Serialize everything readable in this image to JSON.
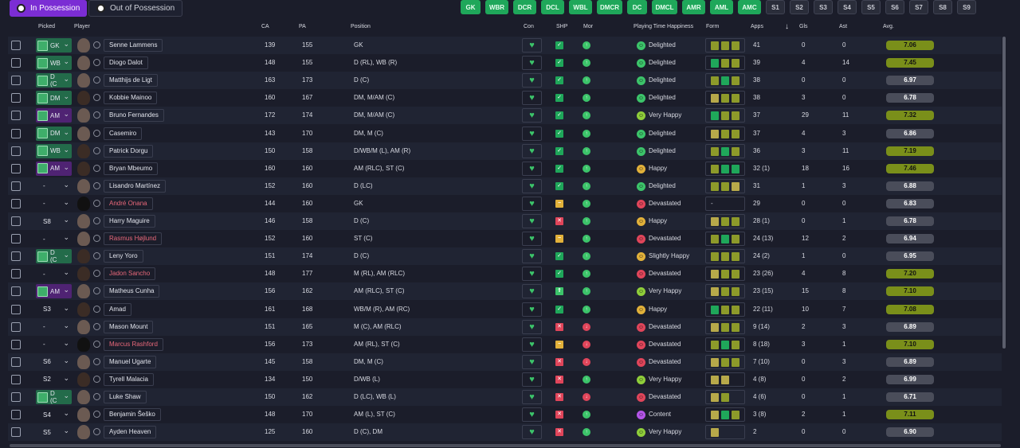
{
  "tabs": [
    {
      "label": "In Possession",
      "active": true,
      "icon": "soccer-ball-icon"
    },
    {
      "label": "Out of Possession",
      "active": false,
      "icon": "soccer-ball-icon"
    }
  ],
  "position_chips": [
    {
      "label": "GK",
      "color": "green"
    },
    {
      "label": "WBR",
      "color": "green"
    },
    {
      "label": "DCR",
      "color": "green"
    },
    {
      "label": "DCL",
      "color": "green"
    },
    {
      "label": "WBL",
      "color": "green"
    },
    {
      "label": "DMCR",
      "color": "green"
    },
    {
      "label": "DC",
      "color": "green"
    },
    {
      "label": "DMCL",
      "color": "green"
    },
    {
      "label": "AMR",
      "color": "green"
    },
    {
      "label": "AML",
      "color": "green"
    },
    {
      "label": "AMC",
      "color": "green"
    },
    {
      "label": "S1",
      "color": "grey"
    },
    {
      "label": "S2",
      "color": "grey"
    },
    {
      "label": "S3",
      "color": "grey"
    },
    {
      "label": "S4",
      "color": "grey"
    },
    {
      "label": "S5",
      "color": "grey"
    },
    {
      "label": "S6",
      "color": "grey"
    },
    {
      "label": "S7",
      "color": "grey"
    },
    {
      "label": "S8",
      "color": "grey"
    },
    {
      "label": "S9",
      "color": "grey"
    }
  ],
  "columns": {
    "picked": "Picked",
    "player": "Player",
    "ca": "CA",
    "pa": "PA",
    "position": "Position",
    "con": "Con",
    "shp": "SHP",
    "mor": "Mor",
    "happiness": "Playing Time Happiness",
    "form": "Form",
    "apps": "Apps",
    "gls": "Gls",
    "ast": "Ast",
    "avg": "Avg."
  },
  "players": [
    {
      "pick": "GK",
      "chip": "green",
      "name": "Senne Lammens",
      "red": false,
      "face": "light",
      "ca": "139",
      "pa": "155",
      "pos": "GK",
      "shp": "ok",
      "mor": "good",
      "hap": "Delighted",
      "hapc": "#3cc46a",
      "form": [
        "#8d9a2a",
        "#8d9a2a",
        "#8d9a2a"
      ],
      "apps": "41",
      "gls": "0",
      "ast": "0",
      "avg": "7.06",
      "good": true
    },
    {
      "pick": "WB",
      "chip": "green",
      "name": "Diogo Dalot",
      "red": false,
      "face": "light",
      "ca": "148",
      "pa": "155",
      "pos": "D (RL), WB (R)",
      "shp": "ok",
      "mor": "good",
      "hap": "Delighted",
      "hapc": "#3cc46a",
      "form": [
        "#1fa75a",
        "#8d9a2a",
        "#8d9a2a"
      ],
      "apps": "39",
      "gls": "4",
      "ast": "14",
      "avg": "7.45",
      "good": true
    },
    {
      "pick": "D (C",
      "chip": "green",
      "name": "Matthijs de Ligt",
      "red": false,
      "face": "light",
      "ca": "163",
      "pa": "173",
      "pos": "D (C)",
      "shp": "ok",
      "mor": "good",
      "hap": "Delighted",
      "hapc": "#3cc46a",
      "form": [
        "#8d9a2a",
        "#1fa75a",
        "#8d9a2a"
      ],
      "apps": "38",
      "gls": "0",
      "ast": "0",
      "avg": "6.97",
      "good": false
    },
    {
      "pick": "DM",
      "chip": "green",
      "name": "Kobbie Mainoo",
      "red": false,
      "face": "dark",
      "ca": "160",
      "pa": "167",
      "pos": "DM, M/AM (C)",
      "shp": "ok",
      "mor": "good",
      "hap": "Delighted",
      "hapc": "#3cc46a",
      "form": [
        "#b7a94a",
        "#8d9a2a",
        "#8d9a2a"
      ],
      "apps": "38",
      "gls": "3",
      "ast": "0",
      "avg": "6.78",
      "good": false
    },
    {
      "pick": "AM",
      "chip": "purple",
      "name": "Bruno Fernandes",
      "red": false,
      "face": "light",
      "ca": "172",
      "pa": "174",
      "pos": "DM, M/AM (C)",
      "shp": "ok",
      "mor": "good",
      "hap": "Very Happy",
      "hapc": "#8fce3a",
      "form": [
        "#1fa75a",
        "#8d9a2a",
        "#8d9a2a"
      ],
      "apps": "37",
      "gls": "29",
      "ast": "11",
      "avg": "7.32",
      "good": true
    },
    {
      "pick": "DM",
      "chip": "green",
      "name": "Casemiro",
      "red": false,
      "face": "light",
      "ca": "143",
      "pa": "170",
      "pos": "DM, M (C)",
      "shp": "ok",
      "mor": "good",
      "hap": "Delighted",
      "hapc": "#3cc46a",
      "form": [
        "#b7a94a",
        "#8d9a2a",
        "#8d9a2a"
      ],
      "apps": "37",
      "gls": "4",
      "ast": "3",
      "avg": "6.86",
      "good": false
    },
    {
      "pick": "WB",
      "chip": "green",
      "name": "Patrick Dorgu",
      "red": false,
      "face": "dark",
      "ca": "150",
      "pa": "158",
      "pos": "D/WB/M (L), AM (R)",
      "shp": "ok",
      "mor": "good",
      "hap": "Delighted",
      "hapc": "#3cc46a",
      "form": [
        "#8d9a2a",
        "#1fa75a",
        "#8d9a2a"
      ],
      "apps": "36",
      "gls": "3",
      "ast": "11",
      "avg": "7.19",
      "good": true
    },
    {
      "pick": "AM",
      "chip": "purple",
      "name": "Bryan Mbeumo",
      "red": false,
      "face": "dark",
      "ca": "160",
      "pa": "160",
      "pos": "AM (RLC), ST (C)",
      "shp": "ok",
      "mor": "good",
      "hap": "Happy",
      "hapc": "#e2b13a",
      "form": [
        "#8d9a2a",
        "#1fa75a",
        "#1fa75a"
      ],
      "apps": "32 (1)",
      "gls": "18",
      "ast": "16",
      "avg": "7.46",
      "good": true
    },
    {
      "pick": "-",
      "chip": "none",
      "name": "Lisandro Martínez",
      "red": false,
      "face": "light",
      "ca": "152",
      "pa": "160",
      "pos": "D (LC)",
      "shp": "ok",
      "mor": "good",
      "hap": "Delighted",
      "hapc": "#3cc46a",
      "form": [
        "#8d9a2a",
        "#8d9a2a",
        "#b7a94a"
      ],
      "apps": "31",
      "gls": "1",
      "ast": "3",
      "avg": "6.88",
      "good": false
    },
    {
      "pick": "-",
      "chip": "none",
      "name": "André Onana",
      "red": true,
      "face": "sil",
      "ca": "144",
      "pa": "160",
      "pos": "GK",
      "shp": "warn",
      "mor": "good",
      "hap": "Devastated",
      "hapc": "#e0455a",
      "form": [],
      "apps": "29",
      "gls": "0",
      "ast": "0",
      "avg": "6.83",
      "good": false
    },
    {
      "pick": "S8",
      "chip": "none",
      "name": "Harry Maguire",
      "red": false,
      "face": "light",
      "ca": "146",
      "pa": "158",
      "pos": "D (C)",
      "shp": "bad",
      "mor": "good",
      "hap": "Happy",
      "hapc": "#e2b13a",
      "form": [
        "#b7a94a",
        "#8d9a2a",
        "#8d9a2a"
      ],
      "apps": "28 (1)",
      "gls": "0",
      "ast": "1",
      "avg": "6.78",
      "good": false
    },
    {
      "pick": "-",
      "chip": "none",
      "name": "Rasmus Højlund",
      "red": true,
      "face": "light",
      "ca": "152",
      "pa": "160",
      "pos": "ST (C)",
      "shp": "warn",
      "mor": "good",
      "hap": "Devastated",
      "hapc": "#e0455a",
      "form": [
        "#8d9a2a",
        "#1fa75a",
        "#8d9a2a"
      ],
      "apps": "24 (13)",
      "gls": "12",
      "ast": "2",
      "avg": "6.94",
      "good": false
    },
    {
      "pick": "D (C",
      "chip": "green",
      "name": "Leny Yoro",
      "red": false,
      "face": "dark",
      "ca": "151",
      "pa": "174",
      "pos": "D (C)",
      "shp": "ok",
      "mor": "good",
      "hap": "Slightly Happy",
      "hapc": "#e2b13a",
      "form": [
        "#8d9a2a",
        "#8d9a2a",
        "#8d9a2a"
      ],
      "apps": "24 (2)",
      "gls": "1",
      "ast": "0",
      "avg": "6.95",
      "good": false
    },
    {
      "pick": "-",
      "chip": "none",
      "name": "Jadon Sancho",
      "red": true,
      "face": "dark",
      "ca": "148",
      "pa": "177",
      "pos": "M (RL), AM (RLC)",
      "shp": "ok",
      "mor": "good",
      "hap": "Devastated",
      "hapc": "#e0455a",
      "form": [
        "#b7a94a",
        "#8d9a2a",
        "#8d9a2a"
      ],
      "apps": "23 (26)",
      "gls": "4",
      "ast": "8",
      "avg": "7.20",
      "good": true
    },
    {
      "pick": "AM",
      "chip": "purple",
      "name": "Matheus Cunha",
      "red": false,
      "face": "light",
      "ca": "156",
      "pa": "162",
      "pos": "AM (RLC), ST (C)",
      "shp": "up",
      "mor": "good",
      "hap": "Very Happy",
      "hapc": "#8fce3a",
      "form": [
        "#b7a94a",
        "#8d9a2a",
        "#8d9a2a"
      ],
      "apps": "23 (15)",
      "gls": "15",
      "ast": "8",
      "avg": "7.10",
      "good": true
    },
    {
      "pick": "S3",
      "chip": "none",
      "name": "Amad",
      "red": false,
      "face": "dark",
      "ca": "161",
      "pa": "168",
      "pos": "WB/M (R), AM (RC)",
      "shp": "ok",
      "mor": "good",
      "hap": "Happy",
      "hapc": "#e2b13a",
      "form": [
        "#1fa75a",
        "#8d9a2a",
        "#8d9a2a"
      ],
      "apps": "22 (11)",
      "gls": "10",
      "ast": "7",
      "avg": "7.08",
      "good": true
    },
    {
      "pick": "-",
      "chip": "none",
      "name": "Mason Mount",
      "red": false,
      "face": "light",
      "ca": "151",
      "pa": "165",
      "pos": "M (C), AM (RLC)",
      "shp": "bad",
      "mor": "bad",
      "hap": "Devastated",
      "hapc": "#e0455a",
      "form": [
        "#b7a94a",
        "#8d9a2a",
        "#8d9a2a"
      ],
      "apps": "9 (14)",
      "gls": "2",
      "ast": "3",
      "avg": "6.89",
      "good": false
    },
    {
      "pick": "-",
      "chip": "none",
      "name": "Marcus Rashford",
      "red": true,
      "face": "sil",
      "ca": "156",
      "pa": "173",
      "pos": "AM (RL), ST (C)",
      "shp": "warn",
      "mor": "bad",
      "hap": "Devastated",
      "hapc": "#e0455a",
      "form": [
        "#8d9a2a",
        "#1fa75a",
        "#8d9a2a"
      ],
      "apps": "8 (18)",
      "gls": "3",
      "ast": "1",
      "avg": "7.10",
      "good": true
    },
    {
      "pick": "S6",
      "chip": "none",
      "name": "Manuel Ugarte",
      "red": false,
      "face": "light",
      "ca": "145",
      "pa": "158",
      "pos": "DM, M (C)",
      "shp": "bad",
      "mor": "bad",
      "hap": "Devastated",
      "hapc": "#e0455a",
      "form": [
        "#b7a94a",
        "#8d9a2a",
        "#8d9a2a"
      ],
      "apps": "7 (10)",
      "gls": "0",
      "ast": "3",
      "avg": "6.89",
      "good": false
    },
    {
      "pick": "S2",
      "chip": "none",
      "name": "Tyrell Malacia",
      "red": false,
      "face": "dark",
      "ca": "134",
      "pa": "150",
      "pos": "D/WB (L)",
      "shp": "bad",
      "mor": "good",
      "hap": "Very Happy",
      "hapc": "#8fce3a",
      "form": [
        "#b7a94a",
        "#b7a94a"
      ],
      "apps": "4 (8)",
      "gls": "0",
      "ast": "2",
      "avg": "6.99",
      "good": false
    },
    {
      "pick": "D (C",
      "chip": "green",
      "name": "Luke Shaw",
      "red": false,
      "face": "light",
      "ca": "150",
      "pa": "162",
      "pos": "D (LC), WB (L)",
      "shp": "bad",
      "mor": "bad",
      "hap": "Devastated",
      "hapc": "#e0455a",
      "form": [
        "#b7a94a",
        "#8d9a2a"
      ],
      "apps": "4 (6)",
      "gls": "0",
      "ast": "1",
      "avg": "6.71",
      "good": false
    },
    {
      "pick": "S4",
      "chip": "none",
      "name": "Benjamin Šeško",
      "red": false,
      "face": "light",
      "ca": "148",
      "pa": "170",
      "pos": "AM (L), ST (C)",
      "shp": "bad",
      "mor": "good",
      "hap": "Content",
      "hapc": "#b455e8",
      "form": [
        "#b7a94a",
        "#1fa75a",
        "#8d9a2a"
      ],
      "apps": "3 (8)",
      "gls": "2",
      "ast": "1",
      "avg": "7.11",
      "good": true
    },
    {
      "pick": "S5",
      "chip": "none",
      "name": "Ayden Heaven",
      "red": false,
      "face": "light",
      "ca": "125",
      "pa": "160",
      "pos": "D (C), DM",
      "shp": "bad",
      "mor": "good",
      "hap": "Very Happy",
      "hapc": "#8fce3a",
      "form": [
        "#b7a94a"
      ],
      "apps": "2",
      "gls": "0",
      "ast": "0",
      "avg": "6.90",
      "good": false
    }
  ]
}
